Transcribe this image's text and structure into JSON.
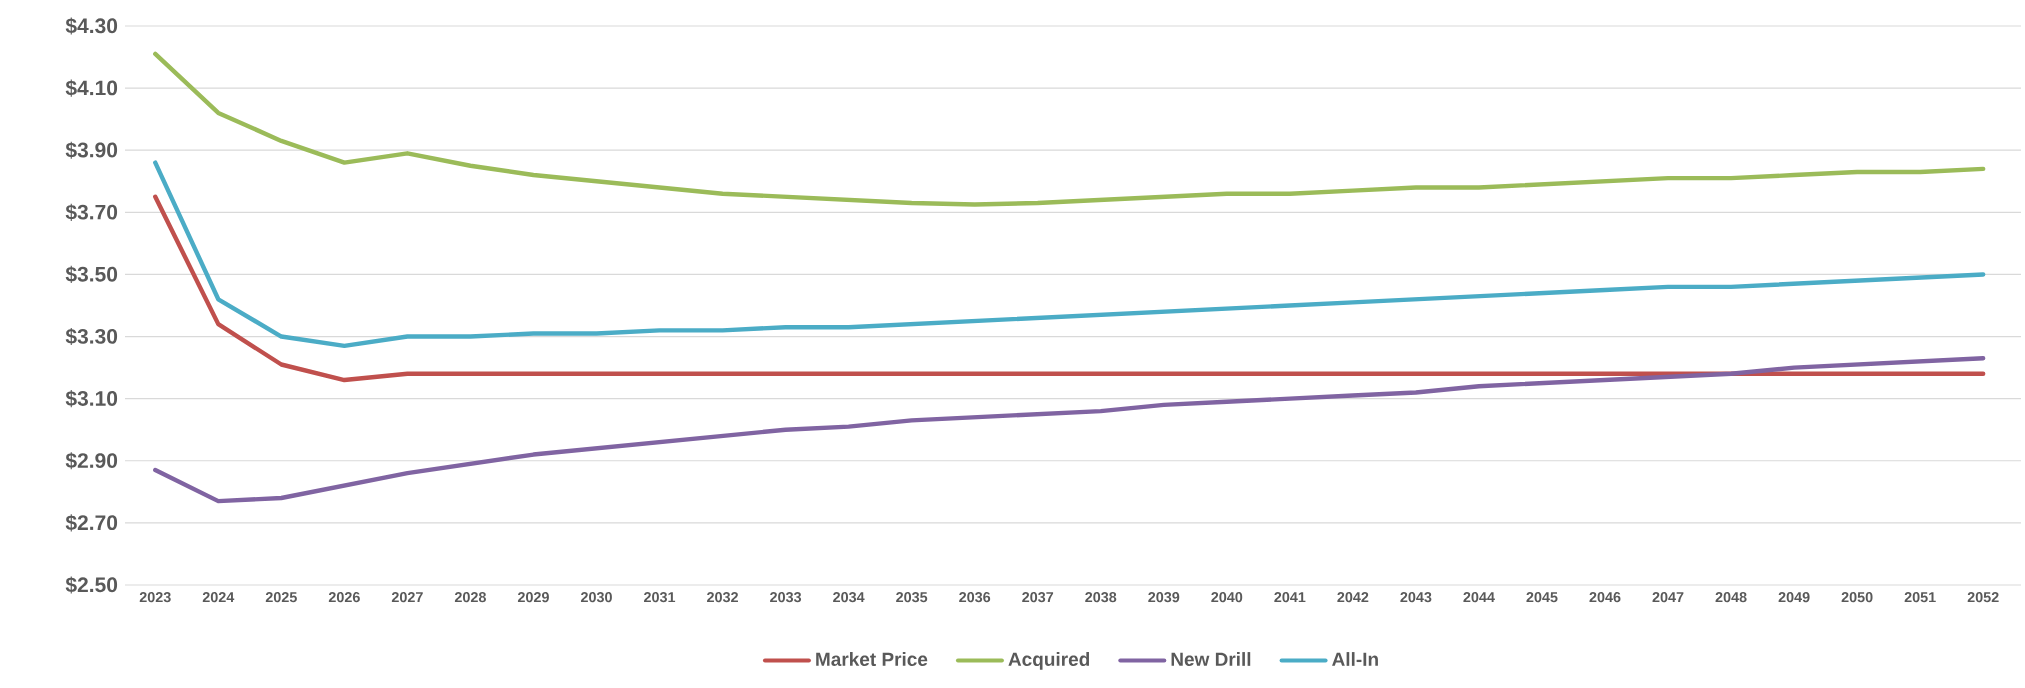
{
  "chart_data": {
    "type": "line",
    "categories": [
      "2023",
      "2024",
      "2025",
      "2026",
      "2027",
      "2028",
      "2029",
      "2030",
      "2031",
      "2032",
      "2033",
      "2034",
      "2035",
      "2036",
      "2037",
      "2038",
      "2039",
      "2040",
      "2041",
      "2042",
      "2043",
      "2044",
      "2045",
      "2046",
      "2047",
      "2048",
      "2049",
      "2050",
      "2051",
      "2052"
    ],
    "series": [
      {
        "name": "Market Price",
        "color": "#c0504d",
        "values": [
          3.75,
          3.34,
          3.21,
          3.16,
          3.18,
          3.18,
          3.18,
          3.18,
          3.18,
          3.18,
          3.18,
          3.18,
          3.18,
          3.18,
          3.18,
          3.18,
          3.18,
          3.18,
          3.18,
          3.18,
          3.18,
          3.18,
          3.18,
          3.18,
          3.18,
          3.18,
          3.18,
          3.18,
          3.18,
          3.18
        ]
      },
      {
        "name": "Acquired",
        "color": "#9bbb59",
        "values": [
          4.21,
          4.02,
          3.93,
          3.86,
          3.89,
          3.85,
          3.82,
          3.8,
          3.78,
          3.76,
          3.75,
          3.74,
          3.73,
          3.725,
          3.73,
          3.74,
          3.75,
          3.76,
          3.76,
          3.77,
          3.78,
          3.78,
          3.79,
          3.8,
          3.81,
          3.81,
          3.82,
          3.83,
          3.83,
          3.84
        ]
      },
      {
        "name": "New Drill",
        "color": "#8064a2",
        "values": [
          2.87,
          2.77,
          2.78,
          2.82,
          2.86,
          2.89,
          2.92,
          2.94,
          2.96,
          2.98,
          3.0,
          3.01,
          3.03,
          3.04,
          3.05,
          3.06,
          3.08,
          3.09,
          3.1,
          3.11,
          3.12,
          3.14,
          3.15,
          3.16,
          3.17,
          3.18,
          3.2,
          3.21,
          3.22,
          3.23
        ]
      },
      {
        "name": "All-In",
        "color": "#4bacc6",
        "values": [
          3.86,
          3.42,
          3.3,
          3.27,
          3.3,
          3.3,
          3.31,
          3.31,
          3.32,
          3.32,
          3.33,
          3.33,
          3.34,
          3.35,
          3.36,
          3.37,
          3.38,
          3.39,
          3.4,
          3.41,
          3.42,
          3.43,
          3.44,
          3.45,
          3.46,
          3.46,
          3.47,
          3.48,
          3.49,
          3.5
        ]
      }
    ],
    "ylim": [
      2.5,
      4.3
    ],
    "yticks": [
      {
        "value": 2.5,
        "label": "$2.50"
      },
      {
        "value": 2.7,
        "label": "$2.70"
      },
      {
        "value": 2.9,
        "label": "$2.90"
      },
      {
        "value": 3.1,
        "label": "$3.10"
      },
      {
        "value": 3.3,
        "label": "$3.30"
      },
      {
        "value": 3.5,
        "label": "$3.50"
      },
      {
        "value": 3.7,
        "label": "$3.70"
      },
      {
        "value": 3.9,
        "label": "$3.90"
      },
      {
        "value": 4.1,
        "label": "$4.10"
      },
      {
        "value": 4.3,
        "label": "$4.30"
      }
    ],
    "grid": "y",
    "legend": "bottom",
    "marker": "none",
    "line_style": "solid"
  }
}
